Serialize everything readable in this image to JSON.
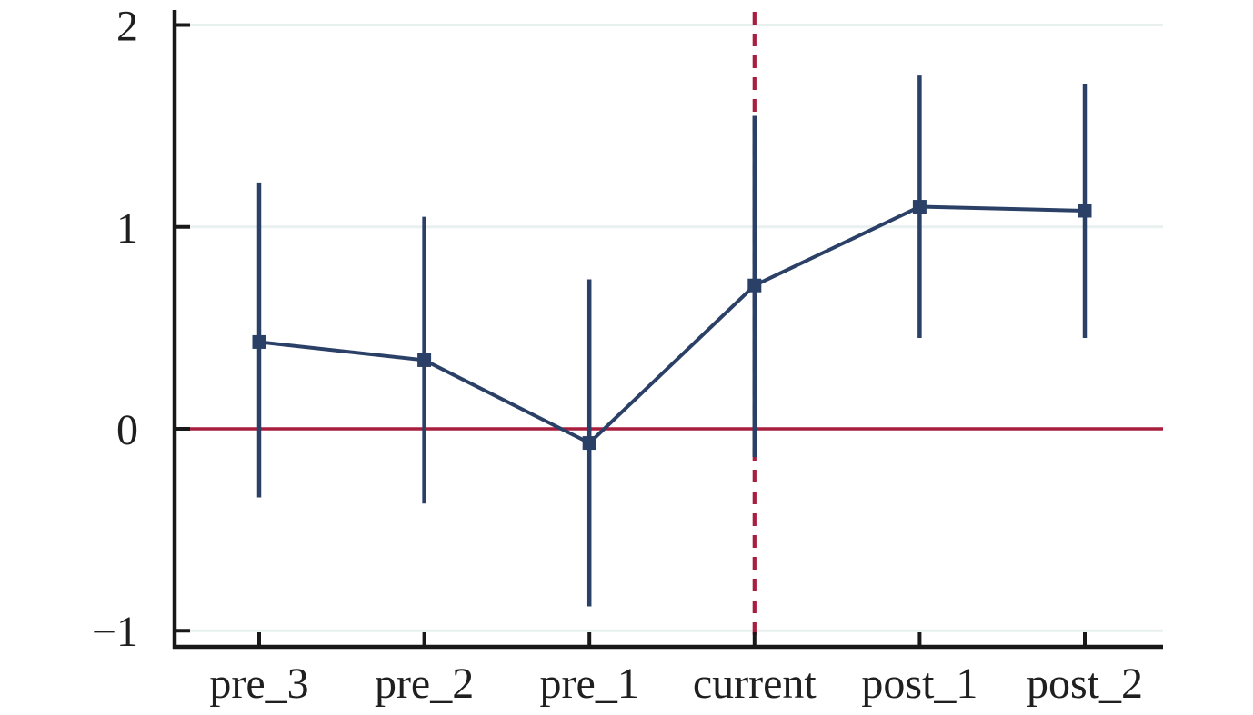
{
  "chart_data": {
    "type": "line",
    "chart_kind": "event-study coefficient plot with confidence intervals",
    "title": "",
    "xlabel": "",
    "ylabel": "",
    "categories": [
      "pre_3",
      "pre_2",
      "pre_1",
      "current",
      "post_1",
      "post_2"
    ],
    "series": [
      {
        "name": "estimate",
        "values": [
          0.43,
          0.34,
          -0.07,
          0.71,
          1.1,
          1.08
        ]
      },
      {
        "name": "ci_lower",
        "values": [
          -0.34,
          -0.37,
          -0.88,
          -0.14,
          0.45,
          0.45
        ]
      },
      {
        "name": "ci_upper",
        "values": [
          1.22,
          1.05,
          0.74,
          1.55,
          1.75,
          1.71
        ]
      }
    ],
    "y_ticks": [
      2,
      1,
      0,
      -1
    ],
    "y_tick_labels": [
      "2",
      "1",
      "0",
      "−1"
    ],
    "ylim": [
      -1.08,
      2.07
    ],
    "grid": true,
    "legend": false,
    "marker": "square",
    "reference_lines": {
      "horizontal": {
        "y": 0,
        "style": "solid"
      },
      "vertical": {
        "category": "current",
        "style": "dashed"
      }
    },
    "colors": {
      "series": "#2b4066",
      "reference": "#a81e3e",
      "grid": "#e9f1f0",
      "axis": "#181818",
      "background": "#ffffff"
    }
  }
}
